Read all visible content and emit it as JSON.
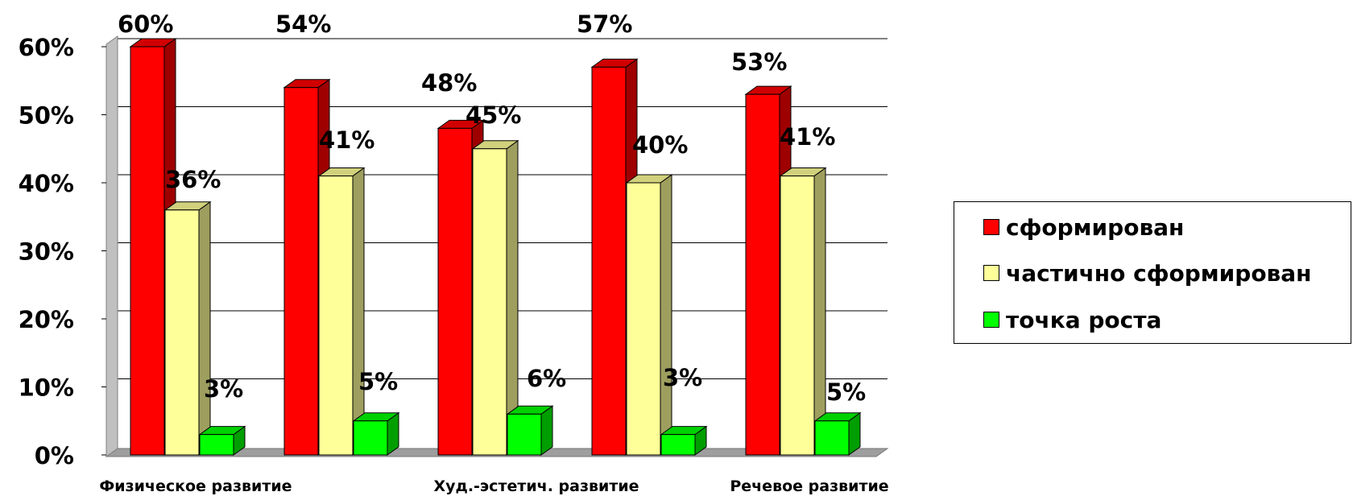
{
  "chart_data": {
    "type": "bar",
    "categories": [
      "Физическое развитие",
      "",
      "Худ.-эстетич. развитие",
      "",
      "Речевое развитие"
    ],
    "series": [
      {
        "name": "сформирован",
        "values": [
          60,
          54,
          48,
          57,
          53
        ],
        "color": "#ff0000"
      },
      {
        "name": "частично сформирован",
        "values": [
          36,
          41,
          45,
          40,
          41
        ],
        "color": "#ffff99"
      },
      {
        "name": "точка роста",
        "values": [
          3,
          5,
          6,
          3,
          5
        ],
        "color": "#00ff00"
      }
    ],
    "data_labels": [
      [
        "60%",
        "54%",
        "48%",
        "57%",
        "53%"
      ],
      [
        "36%",
        "41%",
        "45%",
        "40%",
        "41%"
      ],
      [
        "3%",
        "5%",
        "6%",
        "3%",
        "5%"
      ]
    ],
    "y_ticks": [
      "0%",
      "10%",
      "20%",
      "30%",
      "40%",
      "50%",
      "60%"
    ],
    "ylim": [
      0,
      60
    ],
    "grid": true,
    "legend_position": "right",
    "style": "3d-clustered-column"
  }
}
